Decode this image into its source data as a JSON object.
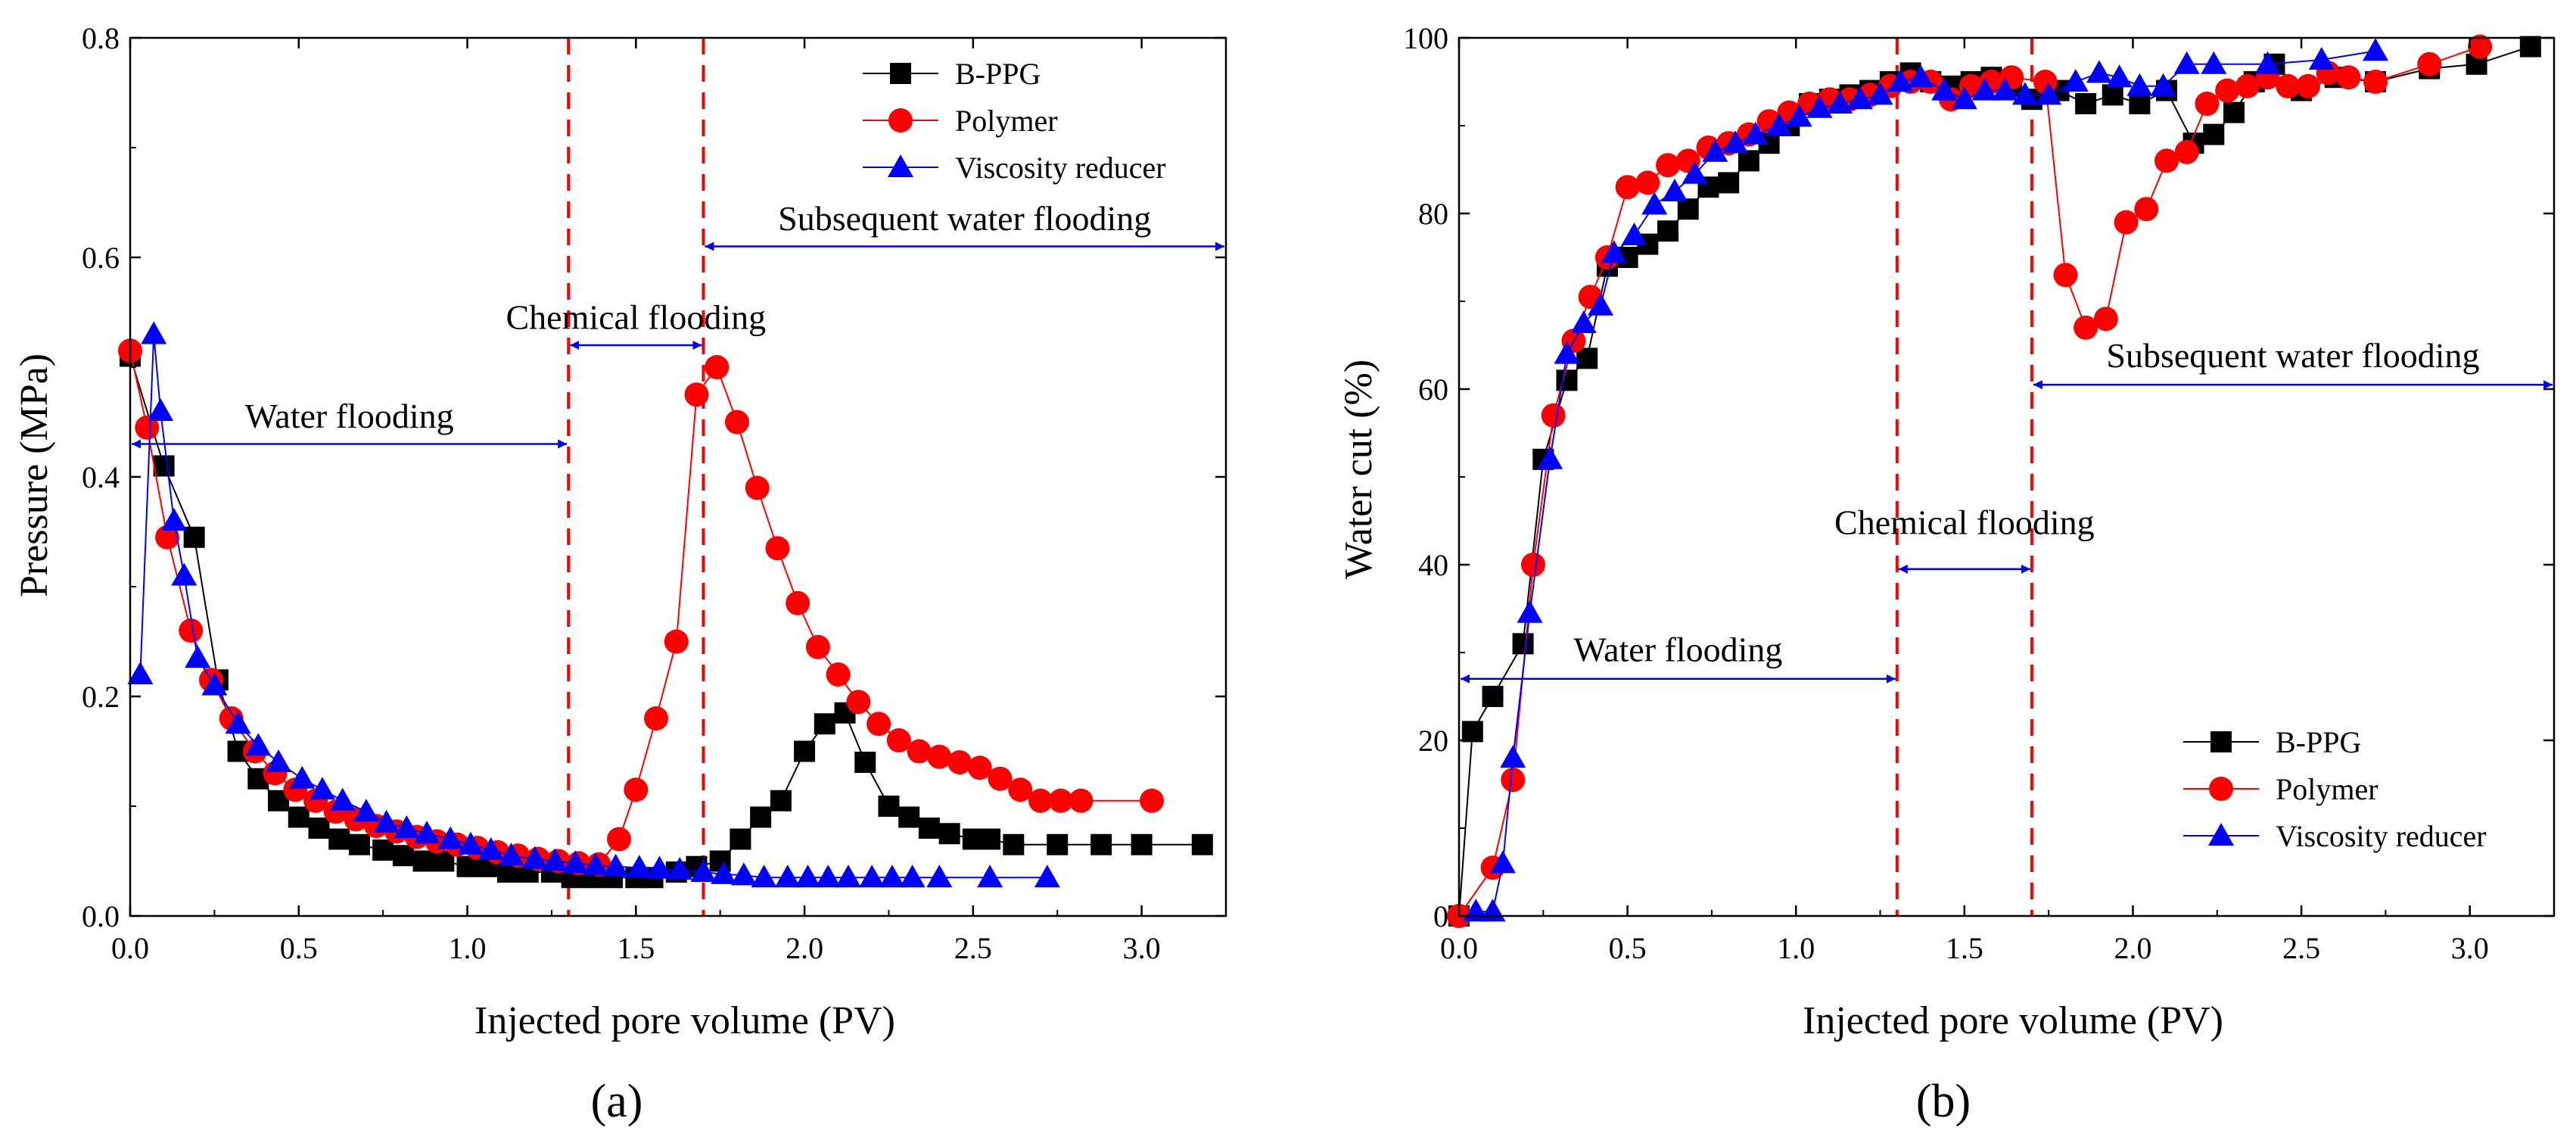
{
  "chart_data": [
    {
      "type": "line",
      "panel_label": "(a)",
      "xlabel": "Injected pore volume (PV)",
      "ylabel": "Pressure (MPa)",
      "xlim": [
        0,
        3.25
      ],
      "ylim": [
        0,
        0.8
      ],
      "xticks": [
        0.0,
        0.5,
        1.0,
        1.5,
        2.0,
        2.5,
        3.0
      ],
      "yticks": [
        0.0,
        0.2,
        0.4,
        0.6,
        0.8
      ],
      "xtick_labels": [
        "0.0",
        "0.5",
        "1.0",
        "1.5",
        "2.0",
        "2.5",
        "3.0"
      ],
      "ytick_labels": [
        "0.0",
        "0.2",
        "0.4",
        "0.6",
        "0.8"
      ],
      "legend_position": "top-right",
      "vlines": [
        1.3,
        1.7
      ],
      "series": [
        {
          "name": "B-PPG",
          "color": "#000000",
          "marker": "square",
          "x": [
            0.0,
            0.1,
            0.19,
            0.26,
            0.32,
            0.38,
            0.44,
            0.5,
            0.56,
            0.62,
            0.68,
            0.75,
            0.81,
            0.87,
            0.93,
            1.0,
            1.06,
            1.12,
            1.18,
            1.25,
            1.31,
            1.37,
            1.43,
            1.5,
            1.55,
            1.62,
            1.68,
            1.75,
            1.81,
            1.87,
            1.93,
            2.0,
            2.06,
            2.12,
            2.18,
            2.25,
            2.31,
            2.37,
            2.43,
            2.5,
            2.55,
            2.62,
            2.75,
            2.88,
            3.0,
            3.18
          ],
          "values": [
            0.51,
            0.41,
            0.345,
            0.215,
            0.15,
            0.125,
            0.105,
            0.09,
            0.08,
            0.07,
            0.065,
            0.06,
            0.055,
            0.05,
            0.05,
            0.045,
            0.045,
            0.04,
            0.04,
            0.04,
            0.035,
            0.035,
            0.035,
            0.035,
            0.035,
            0.04,
            0.045,
            0.05,
            0.07,
            0.09,
            0.105,
            0.15,
            0.175,
            0.185,
            0.14,
            0.1,
            0.09,
            0.08,
            0.075,
            0.07,
            0.07,
            0.065,
            0.065,
            0.065,
            0.065,
            0.065
          ]
        },
        {
          "name": "Polymer",
          "color": "#ff0000",
          "marker": "circle",
          "x": [
            0.0,
            0.05,
            0.11,
            0.18,
            0.24,
            0.3,
            0.37,
            0.43,
            0.49,
            0.55,
            0.61,
            0.67,
            0.73,
            0.79,
            0.85,
            0.91,
            0.97,
            1.03,
            1.09,
            1.15,
            1.21,
            1.27,
            1.33,
            1.39,
            1.45,
            1.5,
            1.56,
            1.62,
            1.68,
            1.74,
            1.8,
            1.86,
            1.92,
            1.98,
            2.04,
            2.1,
            2.16,
            2.22,
            2.28,
            2.34,
            2.4,
            2.46,
            2.52,
            2.58,
            2.64,
            2.7,
            2.76,
            2.82,
            3.03
          ],
          "values": [
            0.515,
            0.445,
            0.345,
            0.26,
            0.215,
            0.18,
            0.15,
            0.13,
            0.115,
            0.105,
            0.095,
            0.088,
            0.082,
            0.077,
            0.072,
            0.068,
            0.065,
            0.062,
            0.058,
            0.055,
            0.052,
            0.05,
            0.048,
            0.047,
            0.07,
            0.115,
            0.18,
            0.25,
            0.475,
            0.5,
            0.45,
            0.39,
            0.335,
            0.285,
            0.245,
            0.22,
            0.195,
            0.175,
            0.16,
            0.15,
            0.145,
            0.14,
            0.135,
            0.125,
            0.115,
            0.105,
            0.105,
            0.105,
            0.105
          ]
        },
        {
          "name": "Viscosity reducer",
          "color": "#0000ff",
          "marker": "triangle",
          "x": [
            0.03,
            0.07,
            0.09,
            0.13,
            0.16,
            0.2,
            0.25,
            0.32,
            0.38,
            0.44,
            0.51,
            0.57,
            0.63,
            0.7,
            0.76,
            0.82,
            0.88,
            0.95,
            1.01,
            1.07,
            1.13,
            1.2,
            1.26,
            1.32,
            1.38,
            1.44,
            1.51,
            1.57,
            1.63,
            1.7,
            1.76,
            1.82,
            1.88,
            1.95,
            2.01,
            2.07,
            2.13,
            2.2,
            2.26,
            2.32,
            2.4,
            2.55,
            2.72
          ],
          "values": [
            0.22,
            0.53,
            0.46,
            0.36,
            0.31,
            0.235,
            0.21,
            0.175,
            0.155,
            0.14,
            0.125,
            0.115,
            0.105,
            0.095,
            0.085,
            0.08,
            0.075,
            0.07,
            0.065,
            0.06,
            0.055,
            0.052,
            0.05,
            0.048,
            0.046,
            0.045,
            0.044,
            0.043,
            0.042,
            0.04,
            0.038,
            0.037,
            0.035,
            0.035,
            0.035,
            0.035,
            0.035,
            0.035,
            0.035,
            0.035,
            0.035,
            0.035,
            0.035
          ]
        }
      ],
      "annotations": [
        {
          "text": "Water flooding",
          "x_from": 0.0,
          "x_to": 1.3,
          "y": 0.43,
          "text_y": 0.445
        },
        {
          "text": "Chemical flooding",
          "x_from": 1.3,
          "x_to": 1.7,
          "y": 0.52,
          "text_y": 0.535
        },
        {
          "text": "Subsequent water flooding",
          "x_from": 1.7,
          "x_to": 3.25,
          "y": 0.61,
          "text_y": 0.625
        }
      ]
    },
    {
      "type": "line",
      "panel_label": "(b)",
      "xlabel": "Injected pore volume (PV)",
      "ylabel": "Water cut (%)",
      "xlim": [
        0,
        3.25
      ],
      "ylim": [
        0,
        100
      ],
      "xticks": [
        0.0,
        0.5,
        1.0,
        1.5,
        2.0,
        2.5,
        3.0
      ],
      "yticks": [
        0,
        20,
        40,
        60,
        80,
        100
      ],
      "xtick_labels": [
        "0.0",
        "0.5",
        "1.0",
        "1.5",
        "2.0",
        "2.5",
        "3.0"
      ],
      "ytick_labels": [
        "0",
        "20",
        "40",
        "60",
        "80",
        "100"
      ],
      "legend_position": "bottom-right",
      "vlines": [
        1.3,
        1.7
      ],
      "series": [
        {
          "name": "B-PPG",
          "color": "#000000",
          "marker": "square",
          "x": [
            0.0,
            0.04,
            0.1,
            0.19,
            0.25,
            0.32,
            0.38,
            0.44,
            0.5,
            0.56,
            0.62,
            0.68,
            0.74,
            0.8,
            0.86,
            0.92,
            0.98,
            1.04,
            1.1,
            1.16,
            1.22,
            1.28,
            1.34,
            1.4,
            1.46,
            1.52,
            1.58,
            1.64,
            1.7,
            1.78,
            1.86,
            1.94,
            2.02,
            2.1,
            2.18,
            2.24,
            2.3,
            2.36,
            2.42,
            2.5,
            2.6,
            2.72,
            2.88,
            3.02,
            3.18
          ],
          "values": [
            0,
            21,
            25,
            31,
            52,
            61,
            63.5,
            74,
            75,
            76.5,
            78,
            80.5,
            83,
            83.5,
            86,
            88,
            90,
            92.5,
            93,
            93.5,
            94,
            95,
            96,
            95,
            94.5,
            95,
            95.5,
            94.5,
            93,
            94,
            92.5,
            93.5,
            92.5,
            94,
            88,
            89,
            91.5,
            95,
            97,
            94,
            95.5,
            95,
            96.5,
            97,
            99
          ]
        },
        {
          "name": "Polymer",
          "color": "#ff0000",
          "marker": "circle",
          "x": [
            0.0,
            0.1,
            0.16,
            0.22,
            0.28,
            0.34,
            0.39,
            0.44,
            0.5,
            0.56,
            0.62,
            0.68,
            0.74,
            0.8,
            0.86,
            0.92,
            0.98,
            1.04,
            1.1,
            1.16,
            1.22,
            1.28,
            1.34,
            1.4,
            1.46,
            1.52,
            1.58,
            1.64,
            1.74,
            1.8,
            1.86,
            1.92,
            1.98,
            2.04,
            2.1,
            2.16,
            2.22,
            2.28,
            2.34,
            2.4,
            2.46,
            2.52,
            2.58,
            2.64,
            2.72,
            2.88,
            3.03
          ],
          "values": [
            0,
            5.5,
            15.5,
            40,
            57,
            65.5,
            70.5,
            75,
            83,
            83.5,
            85.5,
            86,
            87.5,
            88,
            89,
            90.5,
            91.5,
            92.5,
            93,
            93,
            93.5,
            94.5,
            95,
            95,
            93,
            94.5,
            95,
            95.5,
            95,
            73,
            67,
            68,
            79,
            80.5,
            86,
            87,
            92.5,
            94,
            94.5,
            95.5,
            94.5,
            94.5,
            96,
            95.5,
            95,
            97,
            99
          ]
        },
        {
          "name": "Viscosity reducer",
          "color": "#0000ff",
          "marker": "triangle",
          "x": [
            0.05,
            0.1,
            0.13,
            0.16,
            0.21,
            0.27,
            0.32,
            0.37,
            0.42,
            0.46,
            0.52,
            0.58,
            0.64,
            0.7,
            0.76,
            0.82,
            0.88,
            0.95,
            1.01,
            1.07,
            1.13,
            1.19,
            1.25,
            1.31,
            1.37,
            1.44,
            1.5,
            1.56,
            1.62,
            1.68,
            1.75,
            1.83,
            1.9,
            1.96,
            2.02,
            2.09,
            2.16,
            2.24,
            2.4,
            2.56,
            2.72
          ],
          "values": [
            0.5,
            0.5,
            6,
            18,
            34.5,
            52,
            64,
            67.5,
            69.5,
            75.5,
            77.5,
            81,
            82.5,
            84.5,
            87,
            88,
            89,
            90,
            91,
            92,
            92.5,
            93,
            93.5,
            95,
            95.5,
            94,
            93,
            94,
            94,
            93.5,
            93.5,
            95,
            96,
            95.5,
            94.5,
            94.5,
            97,
            97,
            97,
            97.5,
            98.5
          ]
        }
      ],
      "annotations": [
        {
          "text": "Water flooding",
          "x_from": 0.0,
          "x_to": 1.3,
          "y": 27,
          "text_y": 29
        },
        {
          "text": "Chemical flooding",
          "x_from": 1.3,
          "x_to": 1.7,
          "y": 39.5,
          "text_y": 43.5
        },
        {
          "text": "Subsequent water flooding",
          "x_from": 1.7,
          "x_to": 3.25,
          "y": 60.5,
          "text_y": 62.5
        }
      ]
    }
  ]
}
